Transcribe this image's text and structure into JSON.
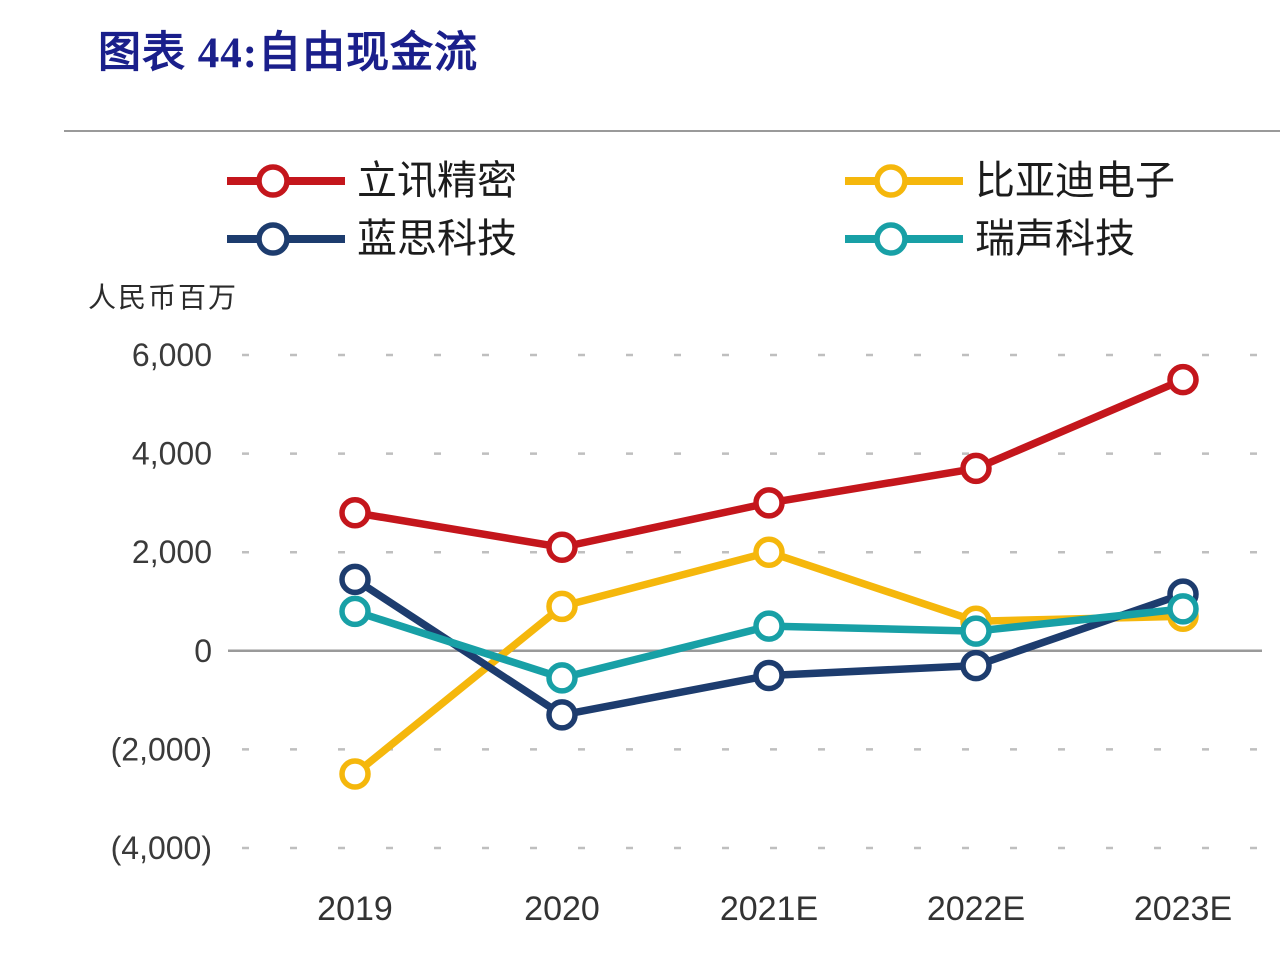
{
  "header": {
    "title": "图表 44:自由现金流"
  },
  "chart_data": {
    "type": "line",
    "title": "图表 44:自由现金流",
    "unit": "人民币百万",
    "categories": [
      "2019",
      "2020",
      "2021E",
      "2022E",
      "2023E"
    ],
    "series": [
      {
        "name": "立讯精密",
        "color": "#c4161c",
        "values": [
          2800,
          2100,
          3000,
          3700,
          5500
        ]
      },
      {
        "name": "比亚迪电子",
        "color": "#f5b70c",
        "values": [
          -2500,
          900,
          2000,
          600,
          700
        ]
      },
      {
        "name": "蓝思科技",
        "color": "#1d3c6e",
        "values": [
          1450,
          -1300,
          -500,
          -300,
          1150
        ]
      },
      {
        "name": "瑞声科技",
        "color": "#18a0a6",
        "values": [
          800,
          -550,
          500,
          400,
          850
        ]
      }
    ],
    "ylim": [
      -4000,
      6000
    ],
    "yticks": [
      6000,
      4000,
      2000,
      0,
      -2000,
      -4000
    ],
    "ytick_labels": [
      "6,000",
      "4,000",
      "2,000",
      "0",
      "(2,000)",
      "(4,000)"
    ],
    "grid": "horizontal-dashed",
    "zero_line": "solid-gray",
    "legend_position": "top",
    "marker": "open-circle"
  }
}
